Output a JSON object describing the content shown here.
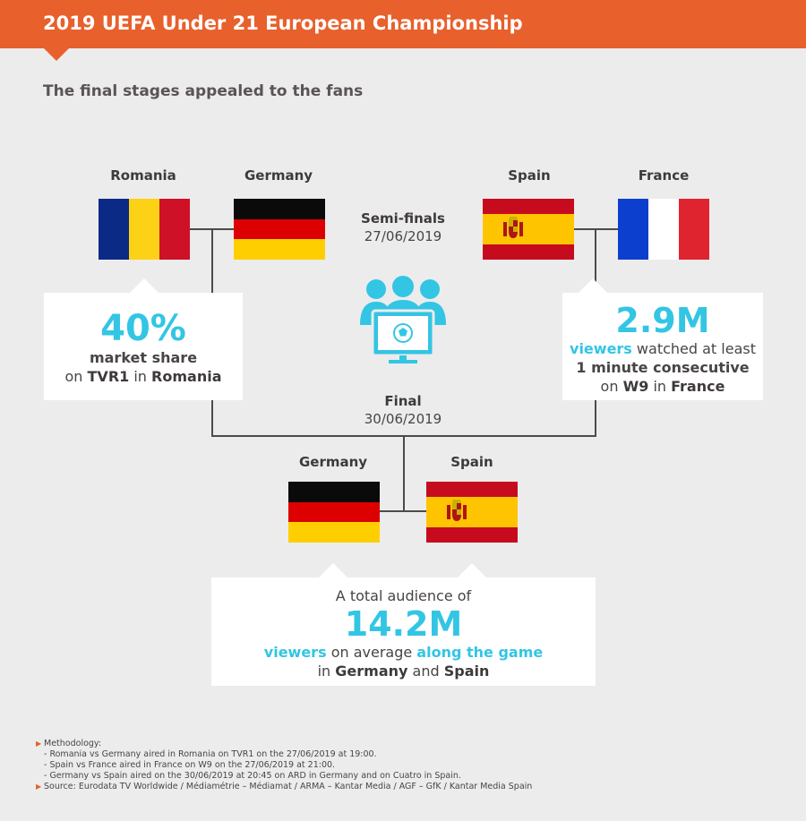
{
  "header": {
    "title": "2019 UEFA Under 21 European Championship",
    "subtitle": "The final stages appealed to the fans"
  },
  "colors": {
    "banner": "#e8602c",
    "accent": "#33c5e4",
    "background": "#ececec"
  },
  "semi_finals": {
    "label": "Semi-finals",
    "date": "27/06/2019",
    "left": {
      "team1": "Romania",
      "team2": "Germany"
    },
    "right": {
      "team1": "Spain",
      "team2": "France"
    }
  },
  "final": {
    "label": "Final",
    "date": "30/06/2019",
    "team1": "Germany",
    "team2": "Spain"
  },
  "icon": "audience-watching-football-icon",
  "cards": {
    "romania": {
      "value": "40%",
      "highlight": "market share",
      "on": "on",
      "channel": "TVR1",
      "in": "in",
      "country": "Romania"
    },
    "france": {
      "value": "2.9M",
      "highlight1": "viewers",
      "text1": "watched at least",
      "highlight2": "1 minute consecutive",
      "on": "on",
      "channel": "W9",
      "in": "in",
      "country": "France"
    },
    "final": {
      "intro": "A  total audience of",
      "value": "14.2M",
      "highlight1": "viewers",
      "text1": "on average",
      "highlight2": "along the game",
      "in": "in",
      "country1": "Germany",
      "and": "and",
      "country2": "Spain"
    }
  },
  "notes": {
    "methodology_label": "Methodology:",
    "items": [
      "- Romania vs Germany aired in Romania on TVR1 on the 27/06/2019 at 19:00.",
      "- Spain vs France aired in France on W9 on the 27/06/2019 at 21:00.",
      "- Germany vs Spain aired on the 30/06/2019 at 20:45 on ARD in Germany and on Cuatro in Spain."
    ],
    "source": "Source: Eurodata TV Worldwide / Médiamétrie – Médiamat / ARMA – Kantar Media / AGF – GfK / Kantar Media Spain"
  }
}
